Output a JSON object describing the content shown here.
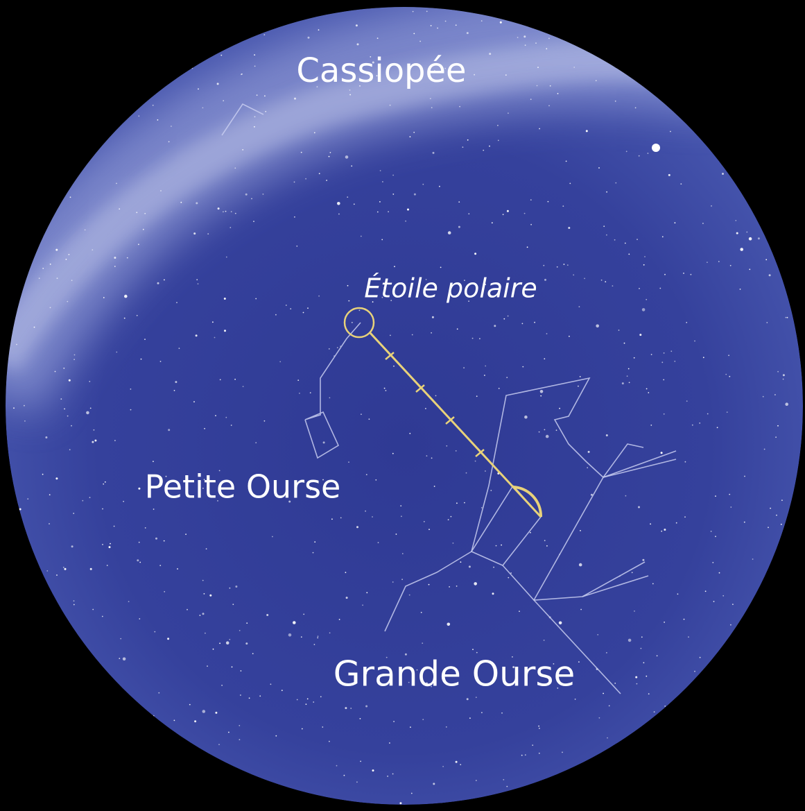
{
  "labels": {
    "cassiopeia": "Cassiopée",
    "polaris": "Étoile polaire",
    "ursa_minor": "Petite Ourse",
    "ursa_major": "Grande Ourse"
  }
}
